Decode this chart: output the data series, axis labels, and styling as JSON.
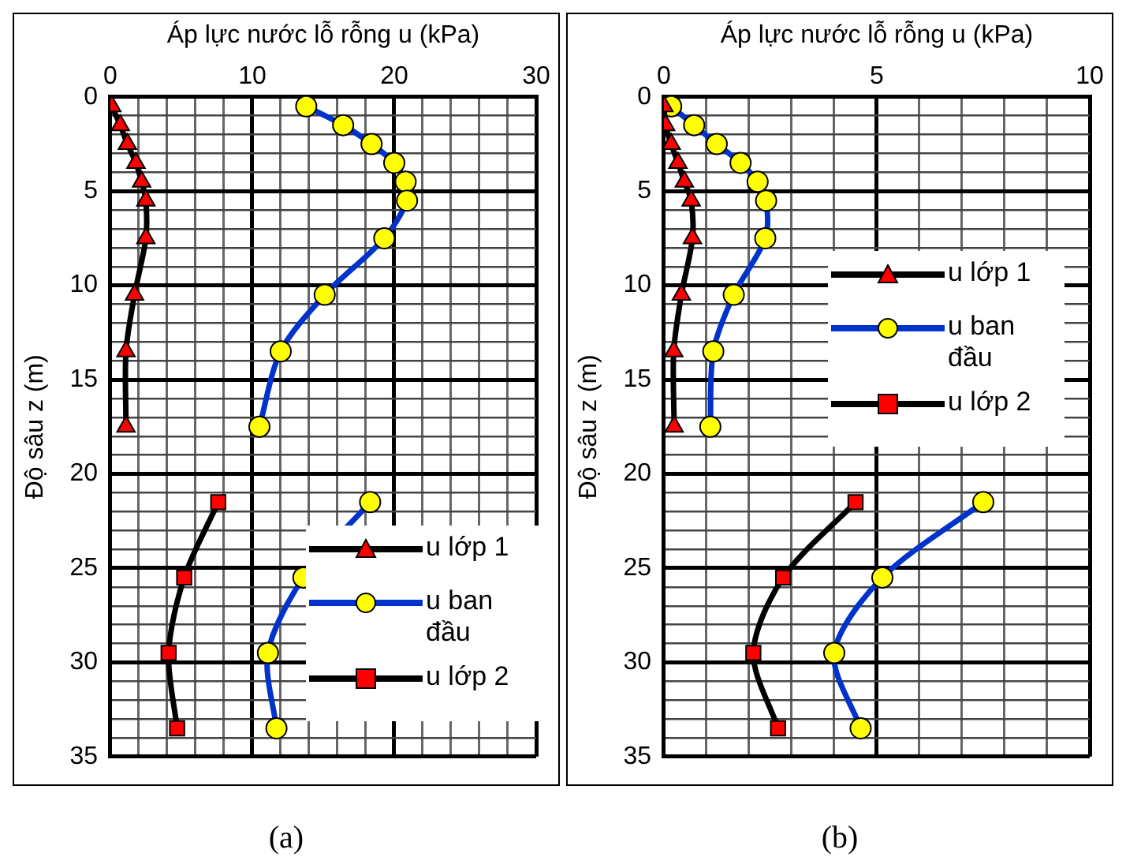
{
  "chart_data": [
    {
      "type": "line",
      "xlabel": "Áp lực nước lỗ rỗng u (kPa)",
      "ylabel": "Độ sâu z (m)",
      "annotations": [
        "(a)"
      ],
      "legend": "bottom right",
      "grid": true,
      "xlim": [
        0,
        30
      ],
      "xticks": [
        0,
        {
          "value": 2,
          "label": null
        },
        {
          "value": 4,
          "label": null
        },
        {
          "value": 6,
          "label": null
        },
        {
          "value": 8,
          "label": null
        },
        10,
        {
          "value": 12,
          "label": null
        },
        {
          "value": 14,
          "label": null
        },
        {
          "value": 16,
          "label": null
        },
        {
          "value": 18,
          "label": null
        },
        20,
        {
          "value": 22,
          "label": null
        },
        {
          "value": 24,
          "label": null
        },
        {
          "value": 26,
          "label": null
        },
        {
          "value": 28,
          "label": null
        },
        30
      ],
      "ylim": [
        35,
        0
      ],
      "yticks": [
        0,
        {
          "value": 1,
          "label": null
        },
        {
          "value": 2,
          "label": null
        },
        {
          "value": 3,
          "label": null
        },
        {
          "value": 4,
          "label": null
        },
        5,
        {
          "value": 6,
          "label": null
        },
        {
          "value": 7,
          "label": null
        },
        {
          "value": 8,
          "label": null
        },
        {
          "value": 9,
          "label": null
        },
        10,
        {
          "value": 11,
          "label": null
        },
        {
          "value": 12,
          "label": null
        },
        {
          "value": 13,
          "label": null
        },
        {
          "value": 14,
          "label": null
        },
        15,
        {
          "value": 16,
          "label": null
        },
        {
          "value": 17,
          "label": null
        },
        {
          "value": 18,
          "label": null
        },
        {
          "value": 19,
          "label": null
        },
        20,
        {
          "value": 21,
          "label": null
        },
        {
          "value": 22,
          "label": null
        },
        {
          "value": 23,
          "label": null
        },
        {
          "value": 24,
          "label": null
        },
        25,
        {
          "value": 26,
          "label": null
        },
        {
          "value": 27,
          "label": null
        },
        {
          "value": 28,
          "label": null
        },
        {
          "value": 29,
          "label": null
        },
        30,
        {
          "value": 31,
          "label": null
        },
        {
          "value": 32,
          "label": null
        },
        {
          "value": 33,
          "label": null
        },
        {
          "value": 34,
          "label": null
        },
        35
      ],
      "series": [
        {
          "name": "u lớp 1",
          "color": "#000000",
          "colors": [
            "#ff0000",
            "#ff0000",
            "#ff0000",
            "#ff0000",
            "#ff0000",
            "#ff0000",
            "#ff0000",
            "#ff0000",
            "#ff0000",
            "#ff0000"
          ],
          "marker": "triangle",
          "x": [
            0.1,
            0.7,
            1.2,
            1.8,
            2.2,
            2.5,
            2.5,
            1.7,
            1.1,
            1.1
          ],
          "values": [
            0.5,
            1.5,
            2.5,
            3.5,
            4.5,
            5.5,
            7.5,
            10.5,
            13.5,
            17.5
          ]
        },
        {
          "name": "u ban đầu",
          "color": "#0033cc",
          "colors": [
            "#ffff00",
            "#ffff00",
            "#ffff00",
            "#ffff00",
            "#ffff00",
            "#ffff00",
            "#ffff00",
            "#ffff00",
            "#ffff00",
            "#ffff00",
            null,
            "#ffff00",
            "#ffff00",
            "#ffff00",
            "#ffff00"
          ],
          "marker": "circle",
          "x": [
            13.8,
            16.4,
            18.4,
            20.0,
            20.8,
            20.9,
            19.3,
            15.1,
            12.0,
            10.5,
            null,
            18.3,
            13.6,
            11.1,
            11.7
          ],
          "values": [
            0.5,
            1.5,
            2.5,
            3.5,
            4.5,
            5.5,
            7.5,
            10.5,
            13.5,
            17.5,
            null,
            21.5,
            25.5,
            29.5,
            33.5
          ]
        },
        {
          "name": "u lớp 2",
          "color": "#000000",
          "colors": [
            "#ff0000",
            "#ff0000",
            "#ff0000",
            "#ff0000"
          ],
          "marker": "square",
          "x": [
            7.6,
            5.2,
            4.1,
            4.7
          ],
          "values": [
            21.5,
            25.5,
            29.5,
            33.5
          ]
        }
      ]
    },
    {
      "type": "line",
      "xlabel": "Áp lực nước lỗ rỗng u (kPa)",
      "ylabel": "Độ sâu z (m)",
      "annotations": [
        "(b)"
      ],
      "legend": "right",
      "grid": true,
      "xlim": [
        0,
        10
      ],
      "xticks": [
        0,
        {
          "value": 1,
          "label": null
        },
        {
          "value": 2,
          "label": null
        },
        {
          "value": 3,
          "label": null
        },
        {
          "value": 4,
          "label": null
        },
        5,
        {
          "value": 6,
          "label": null
        },
        {
          "value": 7,
          "label": null
        },
        {
          "value": 8,
          "label": null
        },
        {
          "value": 9,
          "label": null
        },
        10
      ],
      "ylim": [
        35,
        0
      ],
      "yticks": [
        0,
        {
          "value": 1,
          "label": null
        },
        {
          "value": 2,
          "label": null
        },
        {
          "value": 3,
          "label": null
        },
        {
          "value": 4,
          "label": null
        },
        5,
        {
          "value": 6,
          "label": null
        },
        {
          "value": 7,
          "label": null
        },
        {
          "value": 8,
          "label": null
        },
        {
          "value": 9,
          "label": null
        },
        10,
        {
          "value": 11,
          "label": null
        },
        {
          "value": 12,
          "label": null
        },
        {
          "value": 13,
          "label": null
        },
        {
          "value": 14,
          "label": null
        },
        15,
        {
          "value": 16,
          "label": null
        },
        {
          "value": 17,
          "label": null
        },
        {
          "value": 18,
          "label": null
        },
        {
          "value": 19,
          "label": null
        },
        20,
        {
          "value": 21,
          "label": null
        },
        {
          "value": 22,
          "label": null
        },
        {
          "value": 23,
          "label": null
        },
        {
          "value": 24,
          "label": null
        },
        25,
        {
          "value": 26,
          "label": null
        },
        {
          "value": 27,
          "label": null
        },
        {
          "value": 28,
          "label": null
        },
        {
          "value": 29,
          "label": null
        },
        30,
        {
          "value": 31,
          "label": null
        },
        {
          "value": 32,
          "label": null
        },
        {
          "value": 33,
          "label": null
        },
        {
          "value": 34,
          "label": null
        },
        35
      ],
      "series": [
        {
          "name": "u lớp 1",
          "color": "#000000",
          "colors": [
            "#ff0000",
            "#ff0000",
            "#ff0000",
            "#ff0000",
            "#ff0000",
            "#ff0000",
            "#ff0000",
            "#ff0000",
            "#ff0000",
            "#ff0000"
          ],
          "marker": "triangle",
          "x": [
            0,
            0.04,
            0.17,
            0.33,
            0.48,
            0.64,
            0.67,
            0.41,
            0.23,
            0.24
          ],
          "values": [
            0.5,
            1.5,
            2.5,
            3.5,
            4.5,
            5.5,
            7.5,
            10.5,
            13.5,
            17.5
          ]
        },
        {
          "name": "u ban đầu",
          "color": "#0033cc",
          "colors": [
            "#ffff00",
            "#ffff00",
            "#ffff00",
            "#ffff00",
            "#ffff00",
            "#ffff00",
            "#ffff00",
            "#ffff00",
            "#ffff00",
            "#ffff00",
            null,
            "#ffff00",
            "#ffff00",
            "#ffff00",
            "#ffff00"
          ],
          "marker": "circle",
          "x": [
            0.17,
            0.71,
            1.24,
            1.8,
            2.2,
            2.4,
            2.38,
            1.64,
            1.16,
            1.09,
            null,
            7.5,
            5.13,
            4.0,
            4.62
          ],
          "values": [
            0.5,
            1.5,
            2.5,
            3.5,
            4.5,
            5.5,
            7.5,
            10.5,
            13.5,
            17.5,
            null,
            21.5,
            25.5,
            29.5,
            33.5
          ]
        },
        {
          "name": "u lớp 2",
          "color": "#000000",
          "colors": [
            "#ff0000",
            "#ff0000",
            "#ff0000",
            "#ff0000"
          ],
          "marker": "square",
          "x": [
            4.5,
            2.8,
            2.1,
            2.68
          ],
          "values": [
            21.5,
            25.5,
            29.5,
            33.5
          ]
        }
      ]
    }
  ]
}
